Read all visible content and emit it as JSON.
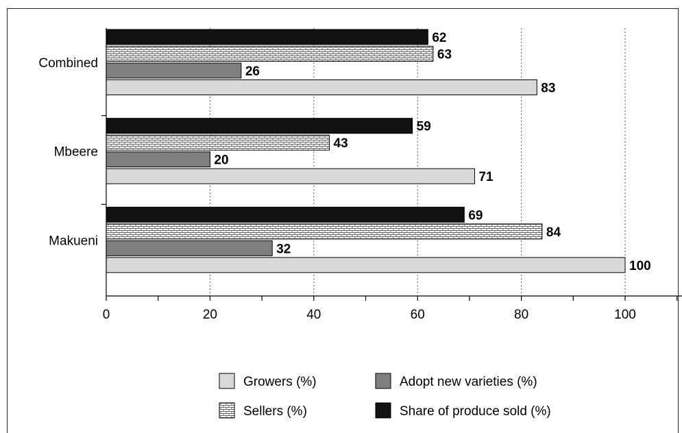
{
  "chart_data": {
    "type": "bar",
    "orientation": "horizontal",
    "categories": [
      "Makueni",
      "Mbeere",
      "Combined"
    ],
    "series": [
      {
        "name": "Growers (%)",
        "values": [
          100,
          71,
          83
        ],
        "color": "#d9d9d9",
        "pattern": "solid"
      },
      {
        "name": "Adopt new varieties (%)",
        "values": [
          32,
          20,
          26
        ],
        "color": "#7f7f7f",
        "pattern": "solid"
      },
      {
        "name": "Sellers (%)",
        "values": [
          84,
          43,
          63
        ],
        "color": "#ffffff",
        "pattern": "brick"
      },
      {
        "name": "Share of produce sold (%)",
        "values": [
          69,
          59,
          62
        ],
        "color": "#111111",
        "pattern": "solid"
      }
    ],
    "xlim": [
      0,
      110
    ],
    "xticks": [
      "0",
      "20",
      "40",
      "60",
      "80",
      "100"
    ],
    "grid": "dotted vertical",
    "legend": "bottom",
    "title": "",
    "xlabel": "",
    "ylabel": ""
  }
}
